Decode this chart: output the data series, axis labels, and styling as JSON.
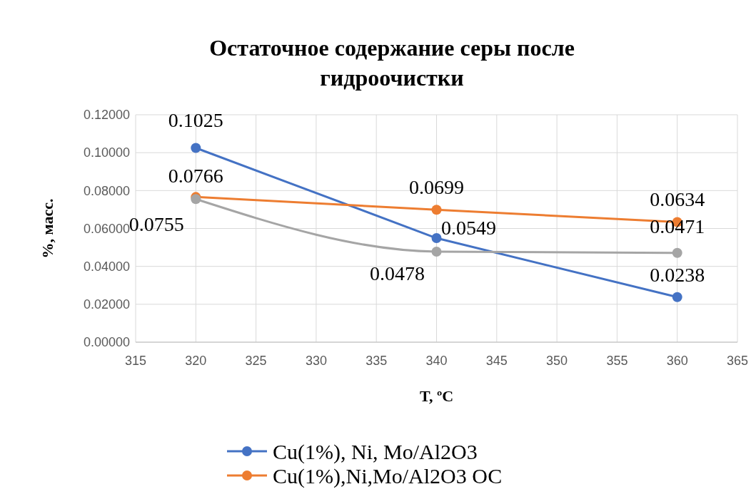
{
  "chart_data": {
    "type": "line",
    "title": "Остаточное содержание серы после гидроочистки",
    "xlabel": "T, ºC",
    "ylabel": "%, масс.",
    "x": [
      320,
      340,
      360
    ],
    "series": [
      {
        "name": "Cu(1%), Ni, Mo/Al2O3",
        "color": "#4472c4",
        "values": [
          0.1025,
          0.0549,
          0.0238
        ]
      },
      {
        "name": "Cu(1%),Ni,Mo/Al2O3 ОС",
        "color": "#ed7d31",
        "values": [
          0.0766,
          0.0699,
          0.0634
        ]
      },
      {
        "color": "#a5a5a5",
        "values": [
          0.0755,
          0.0478,
          0.0471
        ]
      }
    ],
    "xlim": [
      315,
      365
    ],
    "xticks": [
      315,
      320,
      325,
      330,
      335,
      340,
      345,
      350,
      355,
      360,
      365
    ],
    "ylim": [
      0,
      0.12
    ],
    "yticks": [
      {
        "value": 0,
        "label": "0.00000"
      },
      {
        "value": 0.02,
        "label": "0.02000"
      },
      {
        "value": 0.04,
        "label": "0.04000"
      },
      {
        "value": 0.06,
        "label": "0.06000"
      },
      {
        "value": 0.08,
        "label": "0.08000"
      },
      {
        "value": 0.1,
        "label": "0.10000"
      },
      {
        "value": 0.12,
        "label": "0.12000"
      }
    ],
    "grid": true,
    "legend": "bottom",
    "marker": "circle",
    "line_style": "solid",
    "data_labels": true
  }
}
